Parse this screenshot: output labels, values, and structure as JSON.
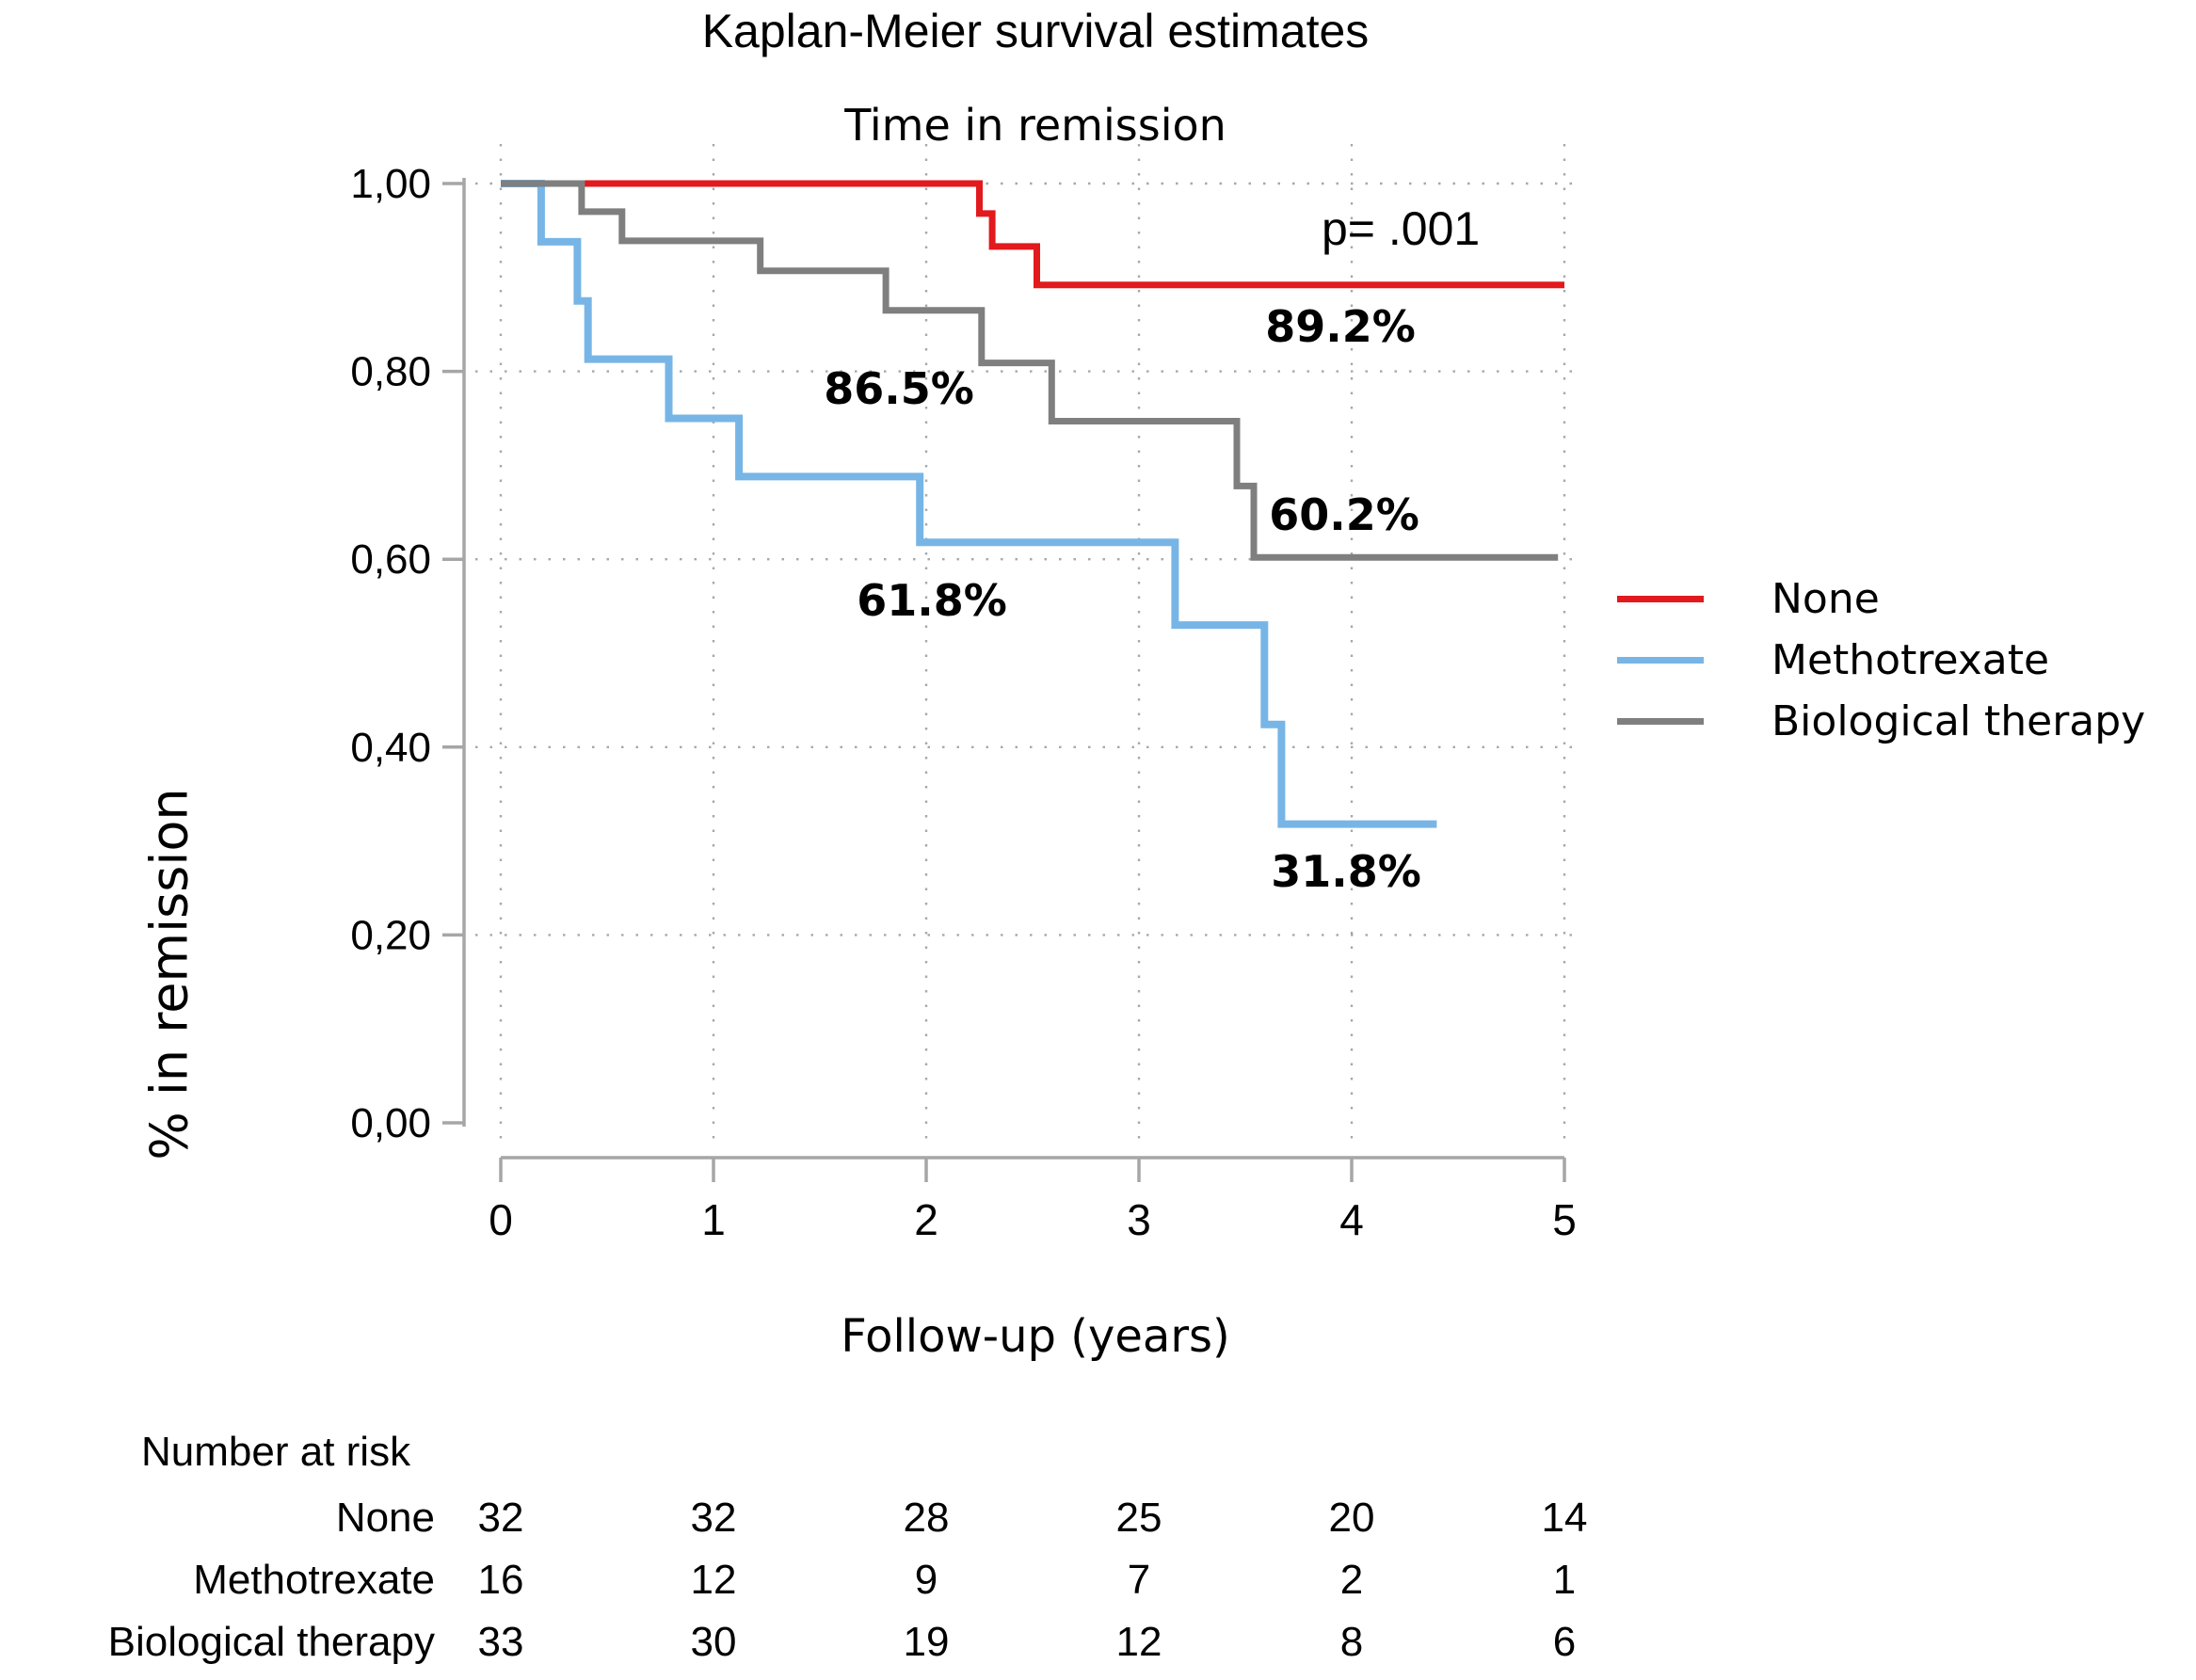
{
  "title": "Kaplan-Meier survival estimates",
  "subtitle": "Time in remission",
  "p_value_text": "p= .001",
  "axes": {
    "x_label": "Follow-up (years)",
    "y_label": "%  in remission",
    "x_ticks": [
      {
        "v": 0,
        "label": "0"
      },
      {
        "v": 1,
        "label": "1"
      },
      {
        "v": 2,
        "label": "2"
      },
      {
        "v": 3,
        "label": "3"
      },
      {
        "v": 4,
        "label": "4"
      },
      {
        "v": 5,
        "label": "5"
      }
    ],
    "y_ticks": [
      {
        "v": 1.0,
        "label": "1,00"
      },
      {
        "v": 0.8,
        "label": "0,80"
      },
      {
        "v": 0.6,
        "label": "0,60"
      },
      {
        "v": 0.4,
        "label": "0,40"
      },
      {
        "v": 0.2,
        "label": "0,20"
      },
      {
        "v": 0.0,
        "label": "0,00"
      }
    ]
  },
  "annotations": {
    "none_final": "89.2%",
    "bio_mid": "86.5%",
    "bio_final": "60.2%",
    "mtx_mid": "61.8%",
    "mtx_final": "31.8%"
  },
  "colors": {
    "none": "#e2191d",
    "methotrexate": "#77b5e6",
    "biological": "#7f7f7f",
    "axis": "#a6a6a6",
    "grid": "#a8a8a8",
    "text": "#000000"
  },
  "chart_data": {
    "type": "line",
    "subtype": "kaplan-meier-step",
    "title": "Kaplan-Meier survival estimates",
    "subtitle": "Time in remission",
    "xlabel": "Follow-up (years)",
    "ylabel": "% in remission",
    "xlim": [
      0,
      5
    ],
    "ylim": [
      0.0,
      1.0
    ],
    "grid": "dotted both axes at major ticks",
    "legend_position": "right",
    "p_value": "p= .001",
    "series": [
      {
        "name": "None",
        "color": "#e2191d",
        "final_estimate": "89.2%",
        "points": [
          [
            0,
            1.0
          ],
          [
            2.25,
            1.0
          ],
          [
            2.25,
            0.968
          ],
          [
            2.31,
            0.968
          ],
          [
            2.31,
            0.933
          ],
          [
            2.52,
            0.933
          ],
          [
            2.52,
            0.892
          ],
          [
            5.0,
            0.892
          ]
        ]
      },
      {
        "name": "Methotrexate",
        "color": "#77b5e6",
        "final_estimate": "31.8%",
        "points": [
          [
            0,
            1.0
          ],
          [
            0.19,
            1.0
          ],
          [
            0.19,
            0.938
          ],
          [
            0.36,
            0.938
          ],
          [
            0.36,
            0.875
          ],
          [
            0.41,
            0.875
          ],
          [
            0.41,
            0.813
          ],
          [
            0.79,
            0.813
          ],
          [
            0.79,
            0.75
          ],
          [
            1.12,
            0.75
          ],
          [
            1.12,
            0.688
          ],
          [
            1.97,
            0.688
          ],
          [
            1.97,
            0.618
          ],
          [
            3.17,
            0.618
          ],
          [
            3.17,
            0.53
          ],
          [
            3.59,
            0.53
          ],
          [
            3.59,
            0.424
          ],
          [
            3.67,
            0.424
          ],
          [
            3.67,
            0.318
          ],
          [
            4.4,
            0.318
          ]
        ]
      },
      {
        "name": "Biological therapy",
        "color": "#7f7f7f",
        "final_estimate": "60.2%",
        "points": [
          [
            0,
            1.0
          ],
          [
            0.38,
            1.0
          ],
          [
            0.38,
            0.97
          ],
          [
            0.57,
            0.97
          ],
          [
            0.57,
            0.939
          ],
          [
            1.22,
            0.939
          ],
          [
            1.22,
            0.907
          ],
          [
            1.81,
            0.907
          ],
          [
            1.81,
            0.865
          ],
          [
            2.26,
            0.865
          ],
          [
            2.26,
            0.809
          ],
          [
            2.59,
            0.809
          ],
          [
            2.59,
            0.747
          ],
          [
            3.46,
            0.747
          ],
          [
            3.46,
            0.678
          ],
          [
            3.54,
            0.678
          ],
          [
            3.54,
            0.602
          ],
          [
            4.97,
            0.602
          ]
        ]
      }
    ]
  },
  "legend": {
    "items": [
      {
        "label": "None",
        "color": "#e2191d"
      },
      {
        "label": "Methotrexate",
        "color": "#77b5e6"
      },
      {
        "label": "Biological therapy",
        "color": "#7f7f7f"
      }
    ]
  },
  "risk_table": {
    "header": "Number at risk",
    "time_points": [
      0,
      1,
      2,
      3,
      4,
      5
    ],
    "rows": [
      {
        "label": "None",
        "counts": [
          "32",
          "32",
          "28",
          "25",
          "20",
          "14"
        ]
      },
      {
        "label": "Methotrexate",
        "counts": [
          "16",
          "12",
          "9",
          "7",
          "2",
          "1"
        ]
      },
      {
        "label": "Biological therapy",
        "counts": [
          "33",
          "30",
          "19",
          "12",
          "8",
          "6"
        ]
      }
    ]
  }
}
